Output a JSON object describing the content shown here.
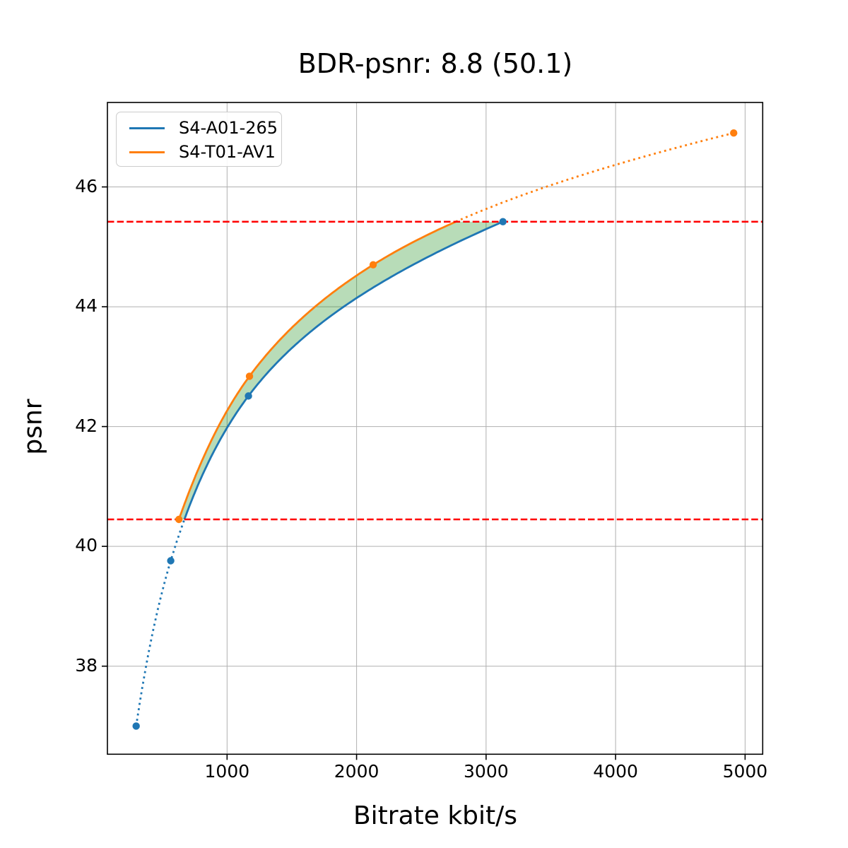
{
  "chart_data": {
    "type": "line",
    "title": "BDR-psnr: 8.8 (50.1)",
    "xlabel": "Bitrate kbit/s",
    "ylabel": "psnr",
    "xlim": [
      76,
      5136
    ],
    "ylim": [
      36.53,
      47.41
    ],
    "x_ticks": [
      1000,
      2000,
      3000,
      4000,
      5000
    ],
    "y_ticks": [
      38,
      40,
      42,
      44,
      46
    ],
    "grid": true,
    "grid_color": "#b0b0b0",
    "legend_position": "upper left",
    "series": [
      {
        "name": "S4-A01-265",
        "color": "#1f77b4",
        "points": [
          [
            298,
            37.0
          ],
          [
            565,
            39.76
          ],
          [
            1165,
            42.51
          ],
          [
            3130,
            45.42
          ]
        ],
        "dotted_segment": "below-overlap-range"
      },
      {
        "name": "S4-T01-AV1",
        "color": "#ff7f0e",
        "points": [
          [
            628,
            40.45
          ],
          [
            1173,
            42.84
          ],
          [
            2128,
            44.7
          ],
          [
            4912,
            46.9
          ]
        ],
        "dotted_segment": "above-overlap-range"
      }
    ],
    "overlap_range": {
      "psnr_low": 40.45,
      "psnr_high": 45.42,
      "line_color": "#ff0000",
      "line_style": "dashed",
      "fill_color": "rgba(0,128,0,0.28)"
    }
  }
}
